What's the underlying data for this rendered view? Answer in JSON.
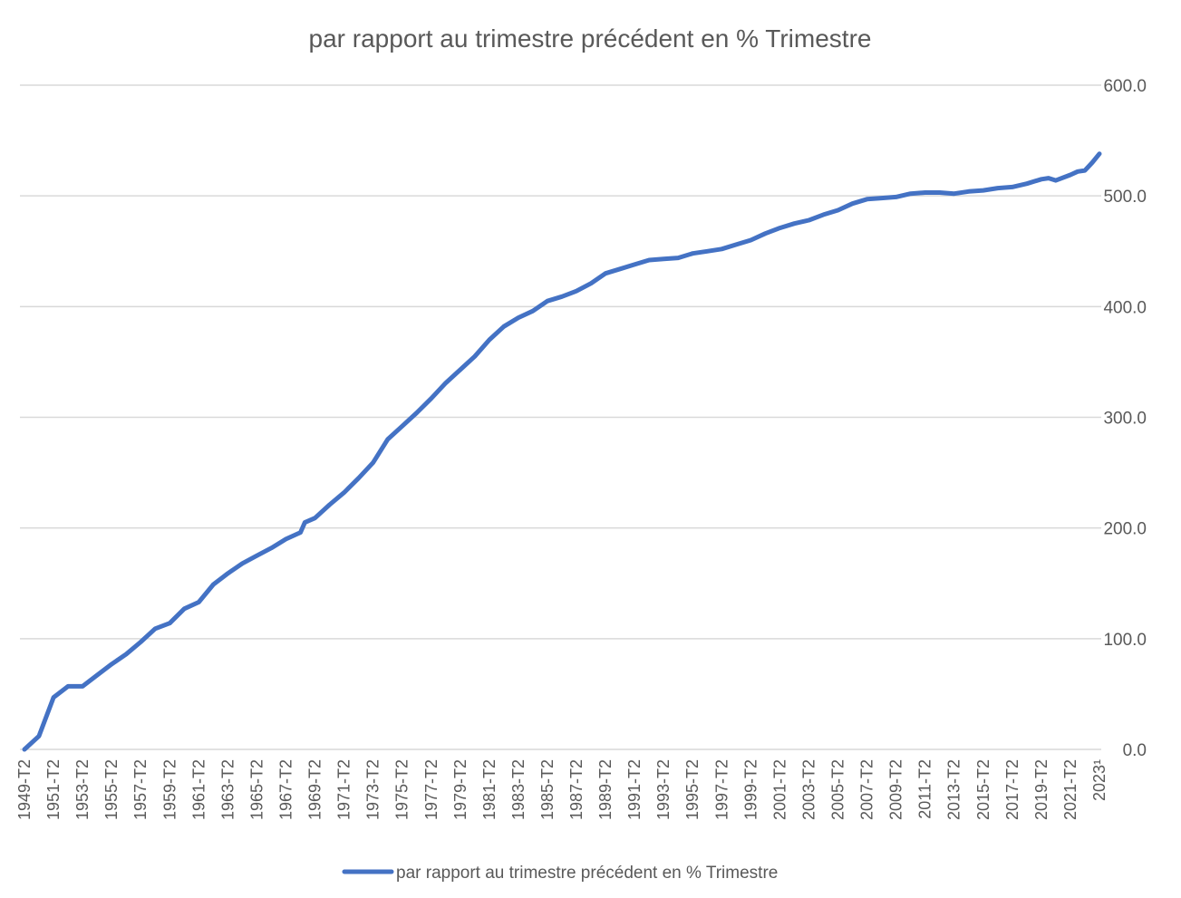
{
  "chart_data": {
    "type": "line",
    "title": "par rapport au trimestre précédent en % Trimestre",
    "xlabel": "",
    "ylabel": "",
    "ylim": [
      0,
      600
    ],
    "y_ticks": [
      "0.0",
      "100.0",
      "200.0",
      "300.0",
      "400.0",
      "500.0",
      "600.0"
    ],
    "y_tick_values": [
      0,
      100,
      200,
      300,
      400,
      500,
      600
    ],
    "y_axis_position": "right",
    "grid": true,
    "legend_position": "bottom",
    "x_tick_labels": [
      "1949-T2",
      "1951-T2",
      "1953-T2",
      "1955-T2",
      "1957-T2",
      "1959-T2",
      "1961-T2",
      "1963-T2",
      "1965-T2",
      "1967-T2",
      "1969-T2",
      "1971-T2",
      "1973-T2",
      "1975-T2",
      "1977-T2",
      "1979-T2",
      "1981-T2",
      "1983-T2",
      "1985-T2",
      "1987-T2",
      "1989-T2",
      "1991-T2",
      "1993-T2",
      "1995-T2",
      "1997-T2",
      "1999-T2",
      "2001-T2",
      "2003-T2",
      "2005-T2",
      "2007-T2",
      "2009-T2",
      "2011-T2",
      "2013-T2",
      "2015-T2",
      "2017-T2",
      "2019-T2",
      "2021-T2",
      "2023¹"
    ],
    "x_tick_years": [
      1949,
      1951,
      1953,
      1955,
      1957,
      1959,
      1961,
      1963,
      1965,
      1967,
      1969,
      1971,
      1973,
      1975,
      1977,
      1979,
      1981,
      1983,
      1985,
      1987,
      1989,
      1991,
      1993,
      1995,
      1997,
      1999,
      2001,
      2003,
      2005,
      2007,
      2009,
      2011,
      2013,
      2015,
      2017,
      2019,
      2021,
      2023
    ],
    "xlim": [
      1949,
      2023
    ],
    "series": [
      {
        "name": "par rapport au trimestre précédent en % Trimestre",
        "color": "#4472C4",
        "x": [
          1949,
          1950,
          1951,
          1952,
          1953,
          1954,
          1955,
          1956,
          1957,
          1958,
          1959,
          1960,
          1961,
          1962,
          1963,
          1964,
          1965,
          1966,
          1967,
          1968,
          1968.3,
          1969,
          1970,
          1971,
          1972,
          1973,
          1974,
          1975,
          1976,
          1977,
          1978,
          1979,
          1980,
          1981,
          1982,
          1983,
          1984,
          1985,
          1986,
          1987,
          1988,
          1989,
          1990,
          1991,
          1992,
          1993,
          1994,
          1995,
          1996,
          1997,
          1998,
          1999,
          2000,
          2001,
          2002,
          2003,
          2004,
          2005,
          2006,
          2007,
          2008,
          2009,
          2010,
          2011,
          2012,
          2013,
          2014,
          2015,
          2016,
          2017,
          2018,
          2019,
          2019.5,
          2020,
          2021,
          2021.5,
          2022,
          2022.5,
          2023
        ],
        "values": [
          0,
          12,
          47,
          57,
          57,
          67,
          77,
          86,
          97,
          109,
          114,
          127,
          133,
          149,
          159,
          168,
          175,
          182,
          190,
          196,
          205,
          209,
          221,
          232,
          245,
          259,
          280,
          292,
          304,
          317,
          331,
          343,
          355,
          370,
          382,
          390,
          396,
          405,
          409,
          414,
          421,
          430,
          434,
          438,
          442,
          443,
          444,
          448,
          450,
          452,
          456,
          460,
          466,
          471,
          475,
          478,
          483,
          487,
          493,
          497,
          498,
          499,
          502,
          503,
          503,
          502,
          504,
          505,
          507,
          508,
          511,
          515,
          516,
          514,
          519,
          522,
          523,
          530,
          538
        ]
      }
    ]
  }
}
